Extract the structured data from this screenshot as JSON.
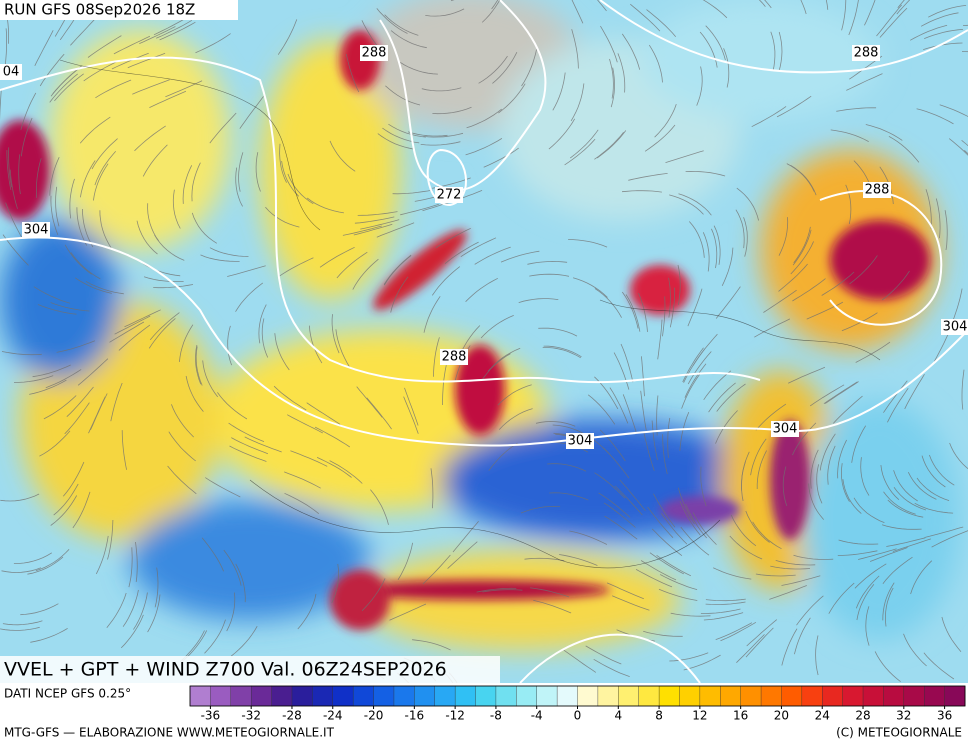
{
  "header": {
    "run": "RUN GFS 08Sep2026 18Z"
  },
  "map": {
    "contour_labels": [
      "04",
      "288",
      "288",
      "272",
      "304",
      "288",
      "304",
      "288",
      "304",
      "304"
    ]
  },
  "footer": {
    "title": "VVEL + GPT + WIND Z700 Val. 06Z24SEP2026",
    "source": "DATI NCEP GFS 0.25°",
    "credit": "MTG-GFS — ELABORAZIONE WWW.METEOGIORNALE.IT",
    "copyright": "(C) METEOGIORNALE"
  },
  "colorbar": {
    "lim": [
      -38,
      38
    ],
    "ticks": [
      -36,
      -32,
      -28,
      -24,
      -20,
      -16,
      -12,
      -8,
      -4,
      0,
      4,
      8,
      12,
      16,
      20,
      24,
      28,
      32,
      36
    ],
    "colors": [
      "#b07ed0",
      "#9a5cc0",
      "#8040a8",
      "#6a2a98",
      "#4a1e90",
      "#2a1e9c",
      "#1a28b4",
      "#1030c8",
      "#1048d8",
      "#1460e4",
      "#1a78ec",
      "#2090f0",
      "#28a8f4",
      "#30c0f4",
      "#48d4f0",
      "#70e0f0",
      "#98ecf4",
      "#c0f4f8",
      "#e4fafc",
      "#fffad0",
      "#fff4a0",
      "#fff070",
      "#ffe840",
      "#ffe000",
      "#ffd000",
      "#ffbc00",
      "#ffa800",
      "#ff9000",
      "#ff7800",
      "#ff5c00",
      "#f84010",
      "#e82820",
      "#d81830",
      "#c81038",
      "#b80c40",
      "#a80a48",
      "#980850",
      "#880858"
    ]
  }
}
